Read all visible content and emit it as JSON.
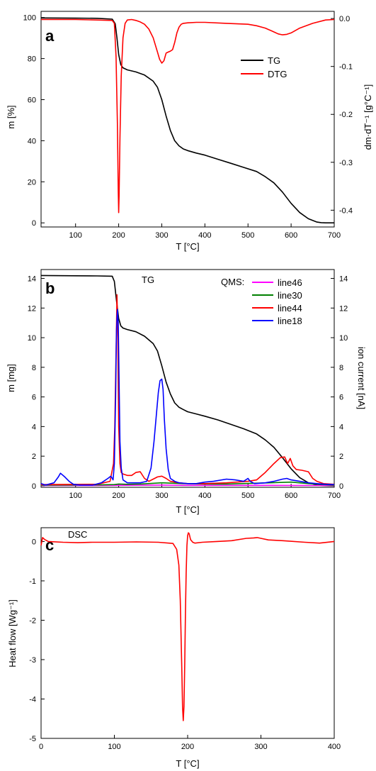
{
  "figure": {
    "background": "#ffffff"
  },
  "chart_data": [
    {
      "panel": "a",
      "type": "line",
      "x_range": [
        20,
        700
      ],
      "xlabel": "T [°C]",
      "ylabel": "m [%]",
      "ylabel_right": "dm·dT⁻¹ [g°C⁻¹]",
      "ylim": [
        -2,
        103
      ],
      "ylim_right": [
        -0.435,
        0.015
      ],
      "x_ticks": [
        100,
        200,
        300,
        400,
        500,
        600,
        700
      ],
      "y_ticks": [
        0,
        20,
        40,
        60,
        80,
        100
      ],
      "y_right_ticks": [
        0.0,
        -0.1,
        -0.2,
        -0.3,
        -0.4
      ],
      "y_right_tick_labels": [
        "0.0",
        "-0.1",
        "-0.2",
        "-0.3",
        "-0.4"
      ],
      "legend": [
        "TG",
        "DTG"
      ],
      "legend_position": "top-right",
      "series": [
        {
          "name": "TG",
          "axis": "left",
          "color": "#000000",
          "x": [
            20,
            100,
            150,
            185,
            192,
            196,
            200,
            205,
            210,
            220,
            240,
            260,
            280,
            290,
            300,
            310,
            320,
            330,
            340,
            350,
            360,
            380,
            400,
            430,
            460,
            490,
            520,
            540,
            560,
            580,
            600,
            620,
            640,
            660,
            670,
            680,
            700
          ],
          "y": [
            99.8,
            99.7,
            99.6,
            99.2,
            97,
            90,
            82,
            77,
            75.5,
            74.5,
            73.5,
            72,
            69,
            66,
            60,
            52,
            45,
            40,
            37.5,
            36,
            35.2,
            34,
            33,
            31,
            29,
            27,
            25,
            22.5,
            19.5,
            15,
            9.5,
            5,
            2,
            0.4,
            0.1,
            0,
            0
          ]
        },
        {
          "name": "DTG",
          "axis": "right",
          "color": "#ff0000",
          "x": [
            20,
            100,
            150,
            185,
            190,
            194,
            197,
            199,
            200,
            201,
            203,
            206,
            210,
            215,
            220,
            230,
            240,
            250,
            260,
            270,
            280,
            290,
            295,
            300,
            305,
            310,
            315,
            320,
            325,
            330,
            335,
            340,
            345,
            350,
            360,
            380,
            400,
            450,
            500,
            520,
            540,
            560,
            570,
            580,
            590,
            600,
            620,
            650,
            680,
            700
          ],
          "y": [
            -0.002,
            -0.002,
            -0.003,
            -0.004,
            -0.01,
            -0.08,
            -0.22,
            -0.36,
            -0.405,
            -0.37,
            -0.25,
            -0.12,
            -0.04,
            -0.01,
            -0.003,
            -0.002,
            -0.004,
            -0.007,
            -0.012,
            -0.022,
            -0.04,
            -0.07,
            -0.085,
            -0.093,
            -0.088,
            -0.072,
            -0.07,
            -0.068,
            -0.065,
            -0.05,
            -0.03,
            -0.018,
            -0.012,
            -0.01,
            -0.009,
            -0.008,
            -0.008,
            -0.01,
            -0.012,
            -0.015,
            -0.02,
            -0.028,
            -0.032,
            -0.034,
            -0.033,
            -0.03,
            -0.02,
            -0.01,
            -0.003,
            -0.002
          ]
        }
      ]
    },
    {
      "panel": "b",
      "type": "line",
      "x_range": [
        20,
        700
      ],
      "xlabel": "T [°C]",
      "ylabel": "m [mg]",
      "ylabel_right": "ion current [nA]",
      "ylim": [
        -0.1,
        14.6
      ],
      "ylim_right": [
        -0.1,
        14.6
      ],
      "x_ticks": [
        100,
        200,
        300,
        400,
        500,
        600,
        700
      ],
      "y_ticks": [
        0,
        2,
        4,
        6,
        8,
        10,
        12,
        14
      ],
      "y_right_ticks": [
        0,
        2,
        4,
        6,
        8,
        10,
        12,
        14
      ],
      "tg_label": "TG",
      "legend_title": "QMS:",
      "legend": [
        "line46",
        "line30",
        "line44",
        "line18"
      ],
      "legend_position": "top-right",
      "series": [
        {
          "name": "TG",
          "axis": "left",
          "color": "#000000",
          "x": [
            20,
            100,
            150,
            185,
            190,
            195,
            200,
            205,
            210,
            220,
            240,
            260,
            280,
            290,
            300,
            310,
            320,
            330,
            340,
            350,
            360,
            380,
            400,
            430,
            460,
            490,
            520,
            540,
            560,
            580,
            600,
            620,
            640,
            660,
            680,
            700
          ],
          "y": [
            14.2,
            14.18,
            14.17,
            14.15,
            13.8,
            12.5,
            11.3,
            10.8,
            10.65,
            10.55,
            10.4,
            10.1,
            9.6,
            9.1,
            8.1,
            7.0,
            6.2,
            5.6,
            5.3,
            5.15,
            5.0,
            4.85,
            4.7,
            4.45,
            4.15,
            3.85,
            3.5,
            3.1,
            2.6,
            1.9,
            1.15,
            0.55,
            0.2,
            0.05,
            0.01,
            0
          ]
        },
        {
          "name": "line46",
          "axis": "right",
          "color": "#ff00ff",
          "x": [
            20,
            150,
            250,
            300,
            350,
            450,
            550,
            650,
            700
          ],
          "y": [
            0.02,
            0.02,
            0.04,
            0.05,
            0.03,
            0.03,
            0.03,
            0.02,
            0.02
          ]
        },
        {
          "name": "line30",
          "axis": "right",
          "color": "#008000",
          "x": [
            20,
            150,
            190,
            200,
            220,
            250,
            300,
            350,
            400,
            450,
            500,
            550,
            600,
            640,
            700
          ],
          "y": [
            0.05,
            0.06,
            0.08,
            0.12,
            0.1,
            0.12,
            0.2,
            0.15,
            0.12,
            0.12,
            0.16,
            0.2,
            0.25,
            0.15,
            0.05
          ]
        },
        {
          "name": "line44",
          "axis": "right",
          "color": "#ff0000",
          "x": [
            20,
            150,
            180,
            188,
            191,
            194,
            196,
            198,
            200,
            203,
            206,
            210,
            220,
            230,
            240,
            250,
            260,
            270,
            280,
            290,
            300,
            310,
            320,
            340,
            360,
            400,
            450,
            500,
            520,
            540,
            560,
            575,
            585,
            592,
            598,
            604,
            612,
            625,
            640,
            650,
            660,
            675,
            700
          ],
          "y": [
            0.08,
            0.1,
            0.3,
            1.5,
            4,
            9,
            12.9,
            10,
            4,
            1.5,
            0.9,
            0.8,
            0.7,
            0.7,
            0.9,
            0.95,
            0.5,
            0.3,
            0.45,
            0.6,
            0.65,
            0.5,
            0.3,
            0.2,
            0.15,
            0.15,
            0.2,
            0.3,
            0.4,
            0.9,
            1.5,
            1.9,
            1.95,
            1.5,
            1.85,
            1.35,
            1.1,
            1.05,
            0.95,
            0.5,
            0.3,
            0.15,
            0.1
          ]
        },
        {
          "name": "line18",
          "axis": "right",
          "color": "#0000ff",
          "x": [
            20,
            30,
            50,
            60,
            65,
            75,
            85,
            95,
            110,
            140,
            160,
            175,
            182,
            187,
            190,
            193,
            195,
            197,
            199,
            201,
            203,
            206,
            210,
            220,
            235,
            250,
            265,
            275,
            282,
            288,
            292,
            296,
            300,
            303,
            306,
            310,
            315,
            320,
            330,
            340,
            360,
            380,
            400,
            420,
            450,
            470,
            490,
            500,
            505,
            515,
            540,
            560,
            580,
            590,
            600,
            620,
            640,
            660,
            680,
            700
          ],
          "y": [
            0.15,
            0.05,
            0.2,
            0.6,
            0.85,
            0.6,
            0.3,
            0.1,
            0.05,
            0.05,
            0.2,
            0.5,
            0.65,
            0.4,
            1.5,
            6,
            10.5,
            11.9,
            11,
            7,
            3,
            1.2,
            0.4,
            0.2,
            0.2,
            0.2,
            0.3,
            1.2,
            3,
            5,
            6.3,
            7.1,
            7.2,
            6.5,
            4.5,
            2.5,
            1.1,
            0.5,
            0.3,
            0.2,
            0.15,
            0.15,
            0.25,
            0.3,
            0.45,
            0.4,
            0.3,
            0.5,
            0.3,
            0.15,
            0.2,
            0.3,
            0.45,
            0.5,
            0.4,
            0.3,
            0.2,
            0.15,
            0.1,
            0.08
          ]
        }
      ]
    },
    {
      "panel": "c",
      "type": "line",
      "x_range": [
        0,
        400
      ],
      "xlabel": "T [°C]",
      "ylabel": "Heat flow [Wg⁻¹]",
      "ylim": [
        -5,
        0.35
      ],
      "x_ticks": [
        0,
        100,
        200,
        300,
        400
      ],
      "y_ticks": [
        0,
        -1,
        -2,
        -3,
        -4,
        -5
      ],
      "annotation": "DSC",
      "series": [
        {
          "name": "DSC",
          "color": "#ff0000",
          "x": [
            0,
            2,
            5,
            10,
            30,
            50,
            70,
            100,
            130,
            160,
            180,
            185,
            188,
            190,
            192,
            193,
            194,
            195,
            196,
            197,
            198,
            199,
            200,
            201,
            202,
            204,
            207,
            210,
            220,
            240,
            260,
            280,
            290,
            295,
            300,
            310,
            330,
            360,
            380,
            400
          ],
          "y": [
            -0.1,
            0.1,
            0.05,
            0,
            -0.02,
            -0.03,
            -0.02,
            -0.02,
            -0.01,
            -0.02,
            -0.05,
            -0.2,
            -0.6,
            -1.5,
            -3.2,
            -4.2,
            -4.55,
            -4.2,
            -3.1,
            -1.8,
            -0.8,
            -0.1,
            0.15,
            0.22,
            0.2,
            0.05,
            -0.02,
            -0.04,
            -0.02,
            0,
            0.02,
            0.08,
            0.09,
            0.1,
            0.08,
            0.04,
            0.02,
            -0.02,
            -0.04,
            0
          ]
        }
      ]
    }
  ]
}
